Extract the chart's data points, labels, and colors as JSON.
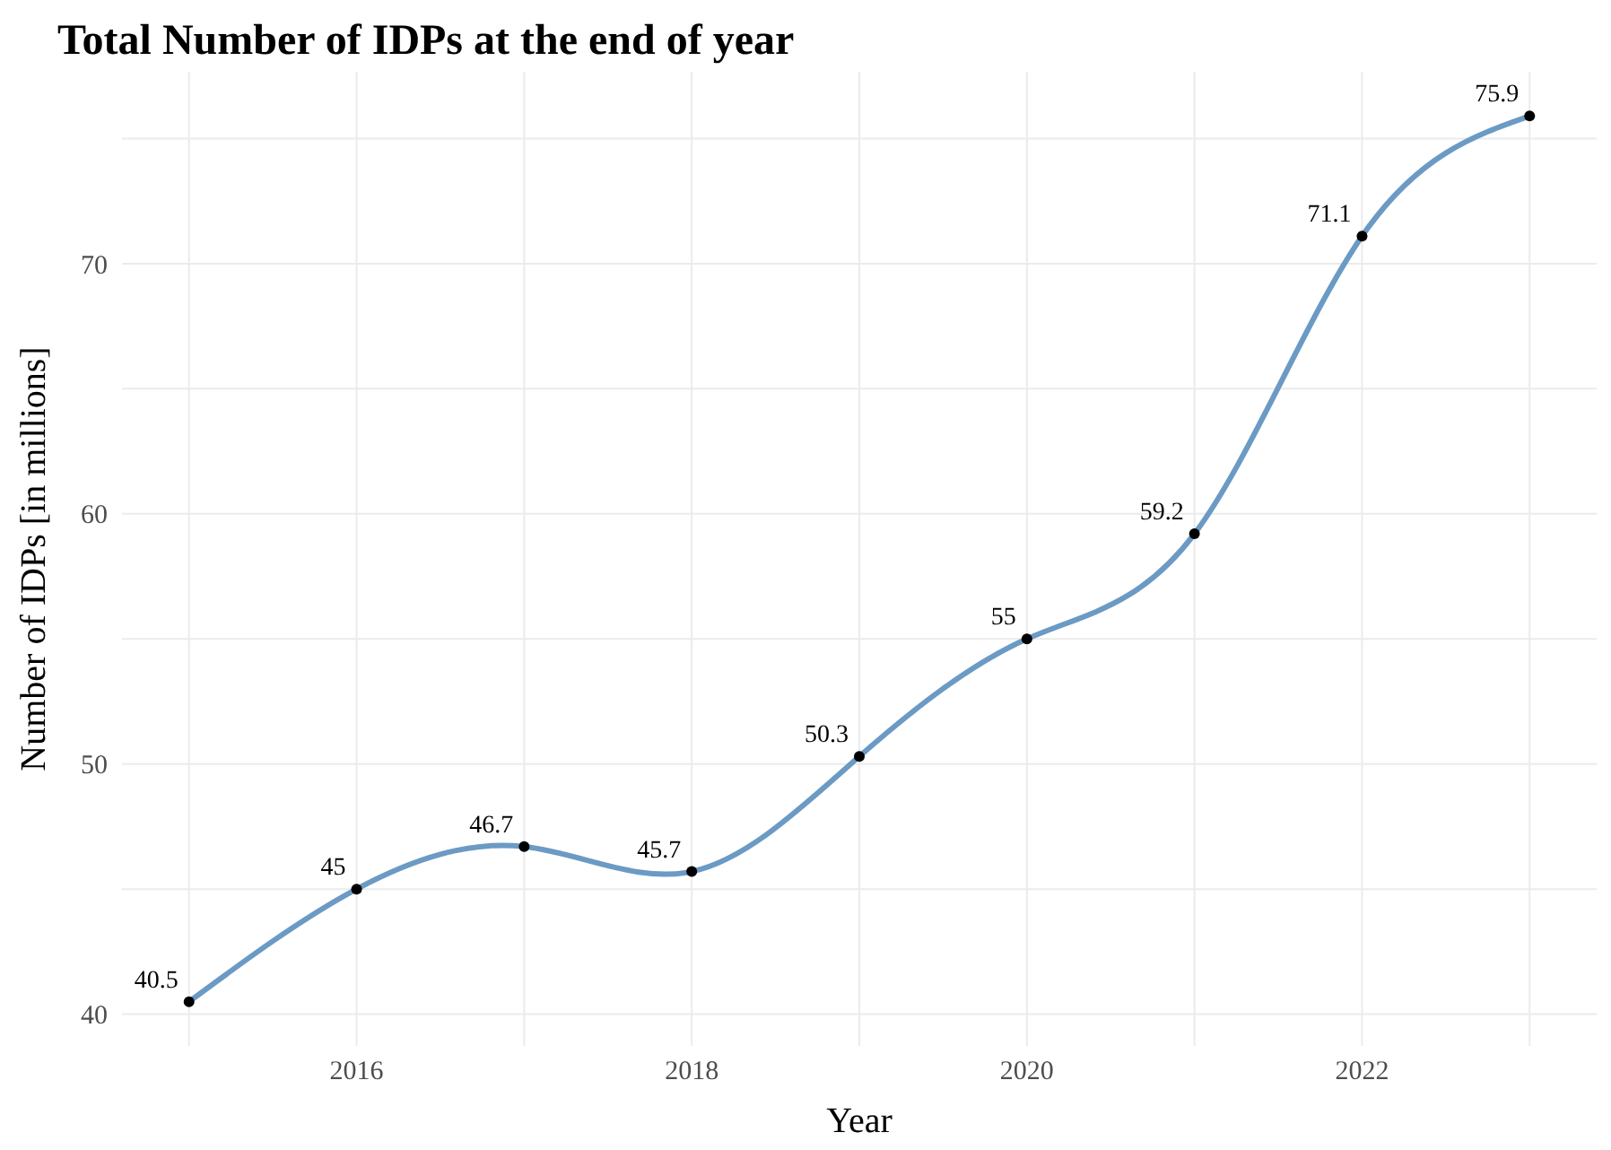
{
  "chart_data": {
    "type": "line",
    "title": "Total Number of IDPs at the end of year",
    "xlabel": "Year",
    "ylabel": "Number of IDPs [in millions]",
    "x": [
      2015,
      2016,
      2017,
      2018,
      2019,
      2020,
      2021,
      2022,
      2023
    ],
    "series": [
      {
        "color": "#6b9ac4",
        "values": [
          40.5,
          45,
          46.7,
          45.7,
          50.3,
          55,
          59.2,
          71.1,
          75.9
        ]
      }
    ],
    "data_labels": true,
    "marker": "circle",
    "line_style": "solid",
    "grid": true,
    "xlim": [
      2014.6,
      2023.4
    ],
    "xticks": [
      {
        "value": 2015,
        "label": null
      },
      2016,
      {
        "value": 2017,
        "label": null
      },
      2018,
      {
        "value": 2019,
        "label": null
      },
      2020,
      {
        "value": 2021,
        "label": null
      },
      2022,
      {
        "value": 2023,
        "label": null
      }
    ],
    "ylim": [
      38.73,
      77.67
    ],
    "yticks": [
      40,
      {
        "value": 45,
        "label": null
      },
      50,
      {
        "value": 55,
        "label": null
      },
      60,
      {
        "value": 65,
        "label": null
      },
      70,
      {
        "value": 75,
        "label": null
      }
    ]
  }
}
